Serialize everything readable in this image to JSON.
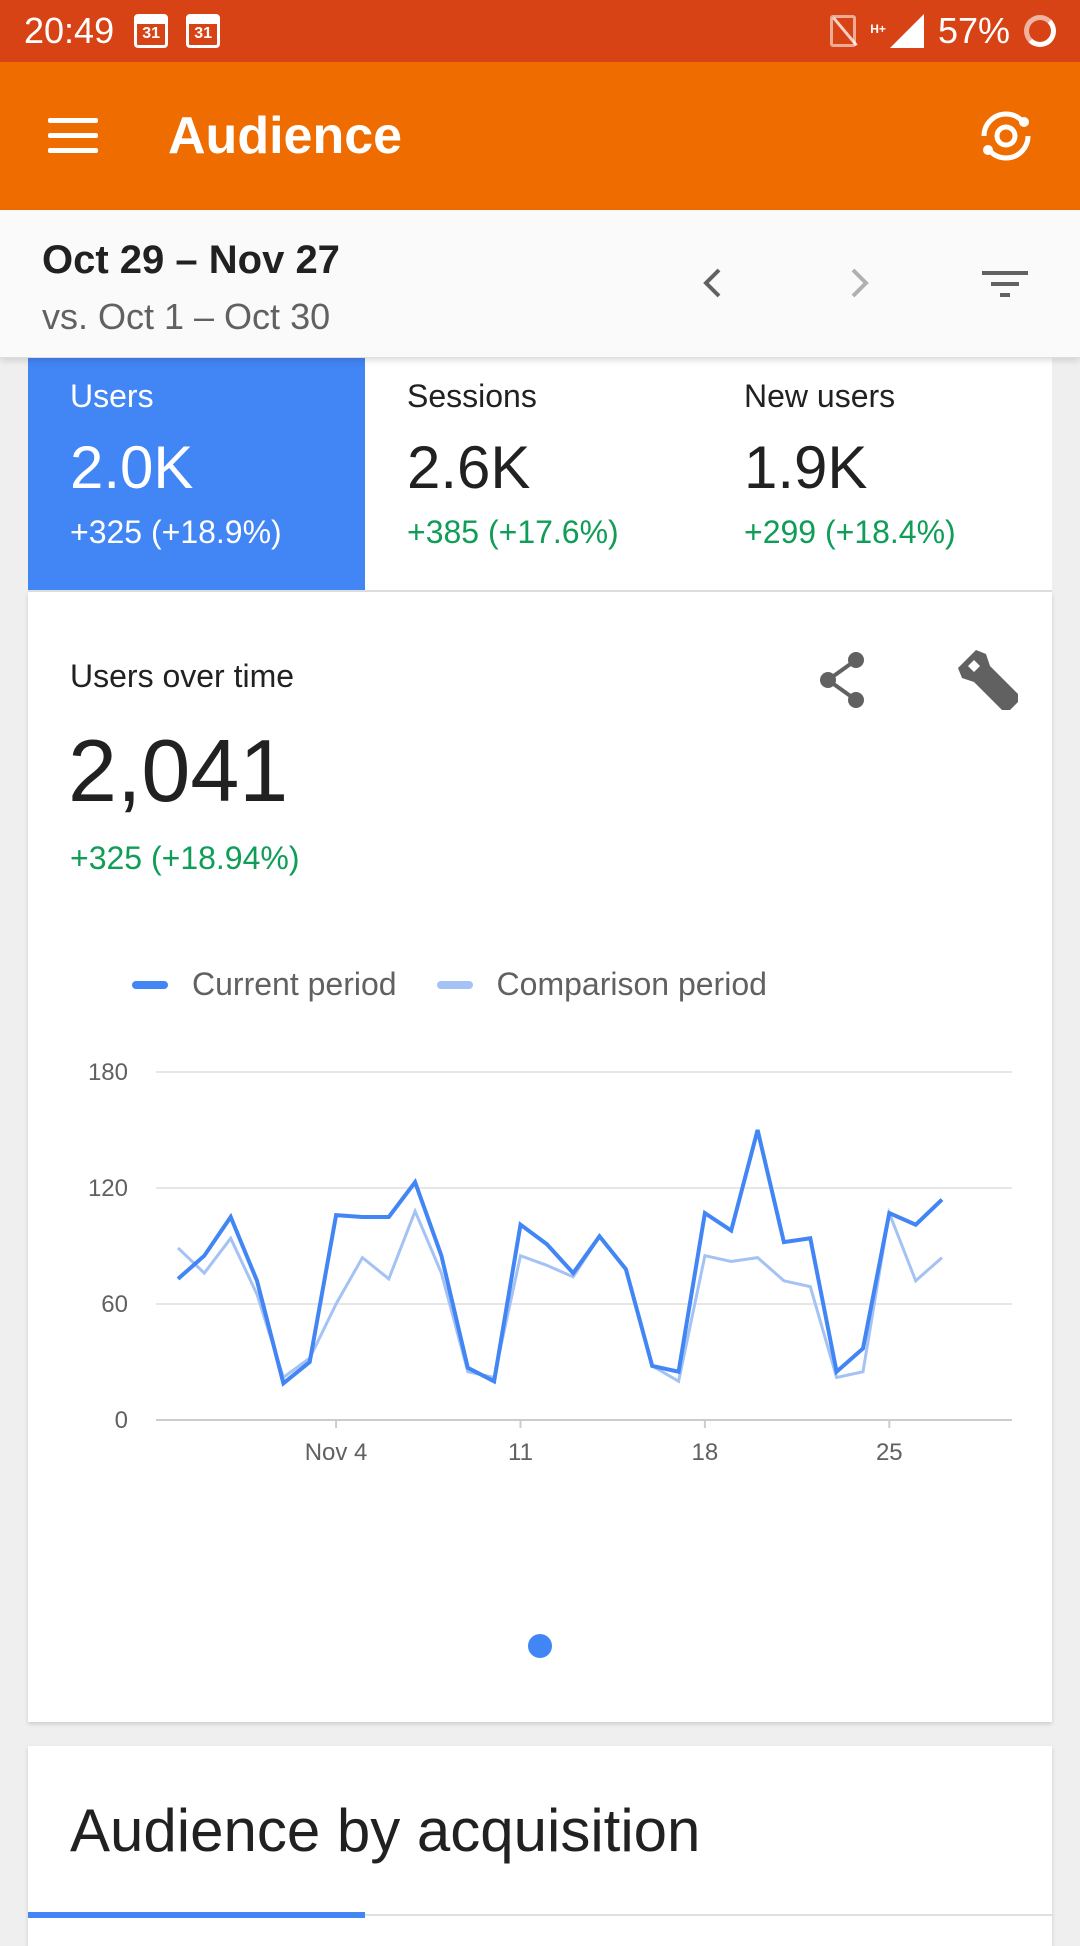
{
  "status_bar": {
    "time": "20:49",
    "calendar_day_1": "31",
    "calendar_day_2": "31",
    "network_type": "H+",
    "battery": "57%"
  },
  "app_bar": {
    "title": "Audience",
    "menu_icon": "hamburger-menu-icon",
    "sync_icon": "sync-icon"
  },
  "date_bar": {
    "range": "Oct 29 – Nov 27",
    "comparison": "vs. Oct 1 – Oct 30"
  },
  "metrics": [
    {
      "label": "Users",
      "value": "2.0K",
      "change": "+325 (+18.9%)",
      "active": true
    },
    {
      "label": "Sessions",
      "value": "2.6K",
      "change": "+385 (+17.6%)",
      "active": false
    },
    {
      "label": "New users",
      "value": "1.9K",
      "change": "+299 (+18.4%)",
      "active": false
    }
  ],
  "chart_card": {
    "title": "Users over time",
    "total": "2,041",
    "change": "+325 (+18.94%)",
    "legend": {
      "current": "Current period",
      "comparison": "Comparison period"
    }
  },
  "colors": {
    "status_bar": "#d84315",
    "app_bar": "#ef6c00",
    "accent_blue": "#4285f4",
    "comparison_blue": "#a4c2f4",
    "positive_green": "#0f9d58"
  },
  "chart_data": {
    "type": "line",
    "x": [
      "Oct 29",
      "Oct 30",
      "Oct 31",
      "Nov 1",
      "Nov 2",
      "Nov 3",
      "Nov 4",
      "Nov 5",
      "Nov 6",
      "Nov 7",
      "Nov 8",
      "Nov 9",
      "Nov 10",
      "Nov 11",
      "Nov 12",
      "Nov 13",
      "Nov 14",
      "Nov 15",
      "Nov 16",
      "Nov 17",
      "Nov 18",
      "Nov 19",
      "Nov 20",
      "Nov 21",
      "Nov 22",
      "Nov 23",
      "Nov 24",
      "Nov 25",
      "Nov 26",
      "Nov 27"
    ],
    "x_tick_labels": [
      {
        "at": "Nov 4",
        "label": "Nov 4"
      },
      {
        "at": "Nov 11",
        "label": "11"
      },
      {
        "at": "Nov 18",
        "label": "18"
      },
      {
        "at": "Nov 25",
        "label": "25"
      }
    ],
    "series": [
      {
        "name": "Current period",
        "values": [
          73,
          85,
          105,
          72,
          19,
          30,
          106,
          105,
          105,
          123,
          85,
          27,
          20,
          101,
          91,
          76,
          95,
          78,
          28,
          25,
          107,
          98,
          150,
          92,
          94,
          25,
          37,
          107,
          101,
          114
        ]
      },
      {
        "name": "Comparison period",
        "values": [
          89,
          76,
          94,
          65,
          22,
          32,
          60,
          84,
          73,
          108,
          76,
          25,
          22,
          85,
          80,
          74,
          95,
          78,
          28,
          20,
          85,
          82,
          84,
          72,
          69,
          22,
          25,
          107,
          72,
          84
        ]
      }
    ],
    "ylim": [
      0,
      180
    ],
    "y_ticks": [
      0,
      60,
      120,
      180
    ],
    "grid": true,
    "legend": "top"
  },
  "pager": {
    "active_page": 1,
    "pages": 1
  },
  "acquisition_card": {
    "title": "Audience by acquisition"
  }
}
